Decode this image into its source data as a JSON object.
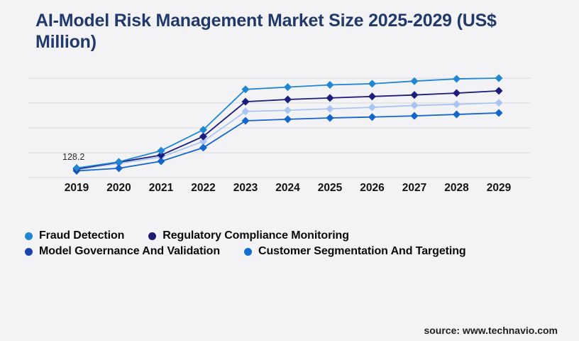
{
  "page": {
    "title": "AI-Model Risk Management Market Size 2025-2029 (US$ Million)",
    "source": "source: www.technavio.com"
  },
  "chart_data": {
    "type": "line",
    "title": "AI-Model Risk Management Market Size 2025-2029 (US$ Million)",
    "xlabel": "",
    "ylabel": "US$ Million",
    "categories": [
      "2019",
      "2020",
      "2021",
      "2022",
      "2023",
      "2024",
      "2025",
      "2026",
      "2027",
      "2028",
      "2029"
    ],
    "ylim": [
      0,
      1330
    ],
    "gridlines": "horizontal, 5 lines, no y tick labels",
    "legend_position": "bottom",
    "marker_shape": "diamond",
    "annotation": {
      "series": "Fraud Detection",
      "x": "2019",
      "value": 128.2,
      "label": "128.2"
    },
    "series": [
      {
        "name": "Fraud Detection",
        "line_color": "#1e86d3",
        "legend_color": "#1e86d3",
        "values": [
          128.2,
          210,
          360,
          640,
          1180,
          1210,
          1240,
          1255,
          1290,
          1320,
          1330
        ]
      },
      {
        "name": "Regulatory Compliance Monitoring",
        "line_color": "#1d1d7e",
        "legend_color": "#1b1b6f",
        "values": [
          115,
          205,
          300,
          550,
          1015,
          1045,
          1065,
          1085,
          1105,
          1130,
          1160
        ]
      },
      {
        "name": "Model Governance And Validation",
        "line_color": "#a9c6f2",
        "legend_color": "#1d44ad",
        "values": [
          105,
          190,
          275,
          485,
          885,
          900,
          920,
          940,
          965,
          980,
          1000
        ]
      },
      {
        "name": "Customer Segmentation And Targeting",
        "line_color": "#1366cc",
        "legend_color": "#0f70d4",
        "values": [
          90,
          125,
          218,
          400,
          760,
          780,
          798,
          810,
          825,
          845,
          865
        ]
      }
    ]
  }
}
